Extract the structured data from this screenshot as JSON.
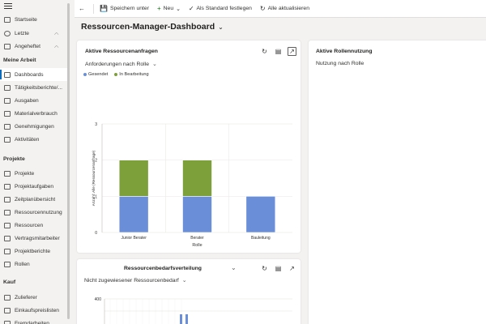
{
  "sidebar": {
    "top_items": [
      {
        "label": "Startseite",
        "icon": "home-icon"
      },
      {
        "label": "Letzte",
        "icon": "clock-icon",
        "has_chevron": true
      },
      {
        "label": "Angeheftet",
        "icon": "pin-icon",
        "has_chevron": true
      }
    ],
    "sections": [
      {
        "title": "Meine Arbeit",
        "items": [
          {
            "label": "Dashboards",
            "icon": "dashboard-icon",
            "active": true
          },
          {
            "label": "Tätigkeitsberichte/...",
            "icon": "report-icon"
          },
          {
            "label": "Ausgaben",
            "icon": "expense-icon"
          },
          {
            "label": "Materialverbrauch",
            "icon": "material-icon"
          },
          {
            "label": "Genehmigungen",
            "icon": "approval-icon"
          },
          {
            "label": "Aktivitäten",
            "icon": "activity-icon"
          }
        ]
      },
      {
        "title": "Projekte",
        "items": [
          {
            "label": "Projekte",
            "icon": "project-icon"
          },
          {
            "label": "Projektaufgaben",
            "icon": "task-icon"
          },
          {
            "label": "Zeitplanübersicht",
            "icon": "schedule-icon"
          },
          {
            "label": "Ressourcennutzung",
            "icon": "resource-usage-icon"
          },
          {
            "label": "Ressourcen",
            "icon": "resources-icon"
          },
          {
            "label": "Vertragsmitarbeiter",
            "icon": "contractor-icon"
          },
          {
            "label": "Projektberichte",
            "icon": "project-report-icon"
          },
          {
            "label": "Rollen",
            "icon": "roles-icon"
          }
        ]
      },
      {
        "title": "Kauf",
        "items": [
          {
            "label": "Zulieferer",
            "icon": "supplier-icon"
          },
          {
            "label": "Einkaufspreislisten",
            "icon": "pricelist-icon"
          },
          {
            "label": "Fremdarbeiten",
            "icon": "external-work-icon"
          }
        ]
      }
    ]
  },
  "commandbar": {
    "save_as": "Speichern unter",
    "new": "Neu",
    "set_default": "Als Standard festlegen",
    "refresh_all": "Alle aktualisieren"
  },
  "page": {
    "title": "Ressourcen-Manager-Dashboard"
  },
  "card_requests": {
    "title": "Aktive Ressourcenanfragen",
    "view": "Anforderungen nach Rolle"
  },
  "card_utilization": {
    "title": "Aktive Rollennutzung",
    "view": "Nutzung nach Rolle"
  },
  "card_demand": {
    "title": "Ressourcenbedarfsverteilung",
    "view": "Nicht zugewiesener Ressourcenbedarf"
  },
  "colors": {
    "sent": "#6a8fd8",
    "in_progress": "#7da03a",
    "accent": "#0f6cbd"
  },
  "chart_data": [
    {
      "type": "bar",
      "stacked": true,
      "categories": [
        "Junior Berater",
        "Berater",
        "Bauleitung"
      ],
      "series": [
        {
          "name": "Gesendet",
          "values": [
            1,
            1,
            1
          ]
        },
        {
          "name": "In Bearbeitung",
          "values": [
            1,
            1,
            0
          ]
        }
      ],
      "xlabel": "Rolle",
      "ylabel": "Anzahl: Alle (Ressourcenanfrage)",
      "ylim": [
        0,
        3
      ],
      "yticks": [
        "0",
        "1",
        "2",
        "3"
      ],
      "legend": "top-left",
      "grid": true
    },
    {
      "type": "bar",
      "ytick_top": "400",
      "partially_visible": true
    }
  ]
}
